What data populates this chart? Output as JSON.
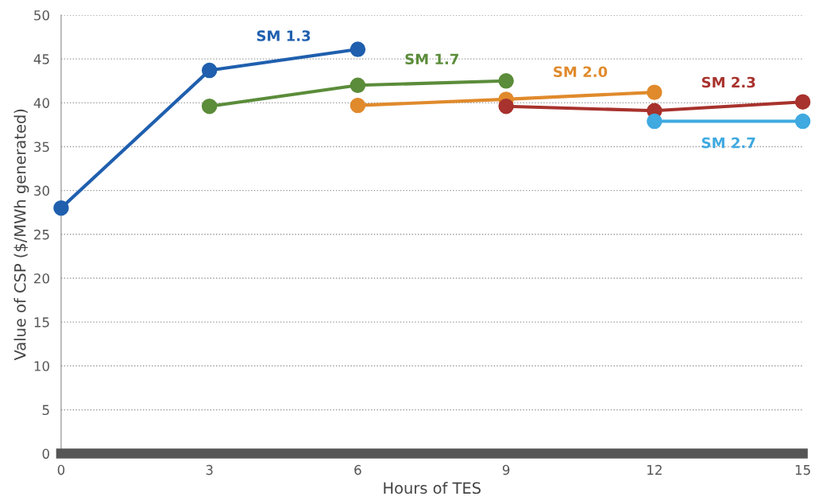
{
  "chart_data": {
    "type": "line",
    "xlabel": "Hours of TES",
    "ylabel": "Value of CSP ($/MWh generated)",
    "xlim": [
      0,
      15
    ],
    "xticks": [
      0,
      3,
      6,
      9,
      12,
      15
    ],
    "ylim": [
      0,
      50
    ],
    "yticks": [
      0,
      5,
      10,
      15,
      20,
      25,
      30,
      35,
      40,
      45,
      50
    ],
    "grid": "y",
    "legend": false,
    "marker": "circle",
    "line_style": "solid",
    "series": [
      {
        "name": "SM 1.3",
        "color": "#1f5fae",
        "x": [
          0,
          3,
          6
        ],
        "values": [
          28,
          43.7,
          46.1
        ]
      },
      {
        "name": "SM 1.7",
        "color": "#5b8c3a",
        "x": [
          3,
          6,
          9
        ],
        "values": [
          39.6,
          42.0,
          42.5
        ]
      },
      {
        "name": "SM 2.0",
        "color": "#e08a2c",
        "x": [
          6,
          9,
          12
        ],
        "values": [
          39.7,
          40.4,
          41.2
        ]
      },
      {
        "name": "SM 2.3",
        "color": "#a8322d",
        "x": [
          9,
          12,
          15
        ],
        "values": [
          39.6,
          39.1,
          40.1
        ]
      },
      {
        "name": "SM 2.7",
        "color": "#3fa9e0",
        "x": [
          12,
          15
        ],
        "values": [
          37.9,
          37.9
        ]
      }
    ]
  }
}
